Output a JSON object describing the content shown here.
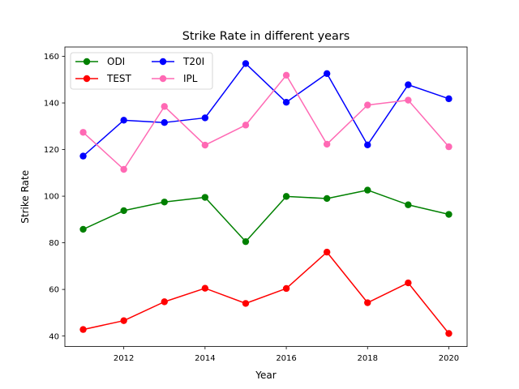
{
  "chart_data": {
    "type": "line",
    "title": "Strike Rate in different years",
    "xlabel": "Year",
    "ylabel": "Strike Rate",
    "x": [
      2011,
      2012,
      2013,
      2014,
      2015,
      2016,
      2017,
      2018,
      2019,
      2020
    ],
    "xlim": [
      2010.55,
      2020.45
    ],
    "ylim": [
      35.5,
      164
    ],
    "xticks": [
      2012,
      2014,
      2016,
      2018,
      2020
    ],
    "yticks": [
      40,
      60,
      80,
      100,
      120,
      140,
      160
    ],
    "grid": false,
    "legend_position": "top-left",
    "series": [
      {
        "name": "ODI",
        "color": "#008000",
        "values": [
          85.8,
          93.8,
          97.5,
          99.5,
          80.5,
          99.9,
          99.0,
          102.6,
          96.3,
          92.2
        ]
      },
      {
        "name": "TEST",
        "color": "#ff0000",
        "values": [
          42.8,
          46.6,
          54.7,
          60.5,
          54.0,
          60.4,
          76.0,
          54.3,
          62.8,
          41.1
        ]
      },
      {
        "name": "T20I",
        "color": "#0000ff",
        "values": [
          117.2,
          132.6,
          131.6,
          133.6,
          156.9,
          140.3,
          152.6,
          122.0,
          147.8,
          141.8
        ]
      },
      {
        "name": "IPL",
        "color": "#ff69b4",
        "values": [
          127.4,
          111.5,
          138.5,
          121.9,
          130.5,
          151.9,
          122.3,
          139.1,
          141.2,
          121.2
        ]
      }
    ]
  }
}
